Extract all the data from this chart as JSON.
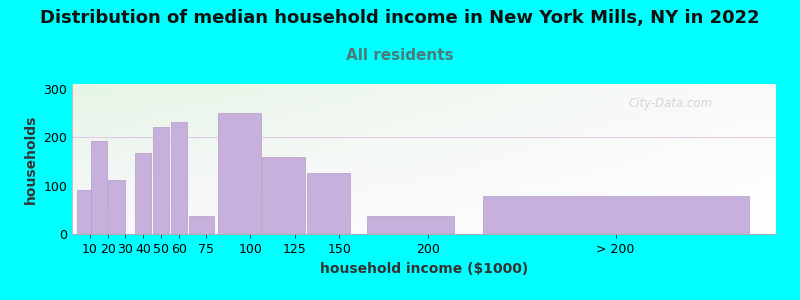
{
  "title": "Distribution of median household income in New York Mills, NY in 2022",
  "subtitle": "All residents",
  "xlabel": "household income ($1000)",
  "ylabel": "households",
  "background_fig": "#00FFFF",
  "bar_color": "#c8b0dc",
  "bar_edge_color": "#b09cc8",
  "values": [
    90,
    192,
    112,
    167,
    222,
    232,
    37,
    250,
    160,
    127,
    37,
    78
  ],
  "bar_centers": [
    7.5,
    15,
    25,
    40,
    50,
    60,
    72.5,
    93.75,
    118.75,
    143.75,
    190,
    305
  ],
  "bar_widths": [
    10,
    10,
    10,
    10,
    10,
    10,
    15,
    25,
    25,
    25,
    50,
    150
  ],
  "ylim": [
    0,
    310
  ],
  "yticks": [
    0,
    100,
    200,
    300
  ],
  "xtick_positions": [
    10,
    20,
    30,
    40,
    50,
    60,
    75,
    100,
    125,
    150,
    200
  ],
  "xtick_labels": [
    "10",
    "20",
    "30",
    "40",
    "50",
    "60",
    "75",
    "100",
    "125",
    "150",
    "200"
  ],
  "last_bar_tick": 305,
  "last_bar_label": "> 200",
  "xlim_left": 0,
  "xlim_right": 395,
  "watermark": "City-Data.com",
  "title_fontsize": 13,
  "subtitle_fontsize": 11,
  "label_fontsize": 10,
  "tick_fontsize": 9
}
